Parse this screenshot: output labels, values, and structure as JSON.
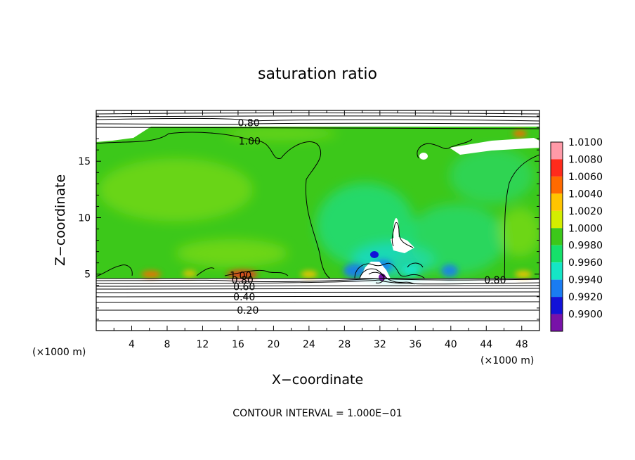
{
  "chart_data": {
    "type": "heatmap",
    "title": "saturation ratio",
    "xlabel": "X−coordinate",
    "ylabel": "Z−coordinate",
    "x_unit_left": "(×1000 m)",
    "x_unit_right": "(×1000 m)",
    "footer": "CONTOUR INTERVAL = 1.000E−01",
    "xlim": [
      0,
      50
    ],
    "ylim": [
      0,
      19.5
    ],
    "x_ticks": [
      "4",
      "8",
      "12",
      "16",
      "20",
      "24",
      "28",
      "32",
      "36",
      "40",
      "44",
      "48"
    ],
    "y_ticks": [
      "5",
      "10",
      "15"
    ],
    "colorbar_labels": [
      "1.0100",
      "1.0080",
      "1.0060",
      "1.0040",
      "1.0020",
      "1.0000",
      "0.9980",
      "0.9960",
      "0.9940",
      "0.9920",
      "0.9900"
    ],
    "colorbar_colors": [
      "#ff9aa8",
      "#ff2b1c",
      "#ff6a00",
      "#ffc400",
      "#d4ee00",
      "#3cc81a",
      "#15e06a",
      "#15e6c6",
      "#1a7cf2",
      "#1212d8",
      "#7812a8"
    ],
    "contour_labels": [
      {
        "text": "0.80",
        "x": 17.2,
        "z": 18.4
      },
      {
        "text": "1.00",
        "x": 17.3,
        "z": 16.8
      },
      {
        "text": "1.00",
        "x": 16.3,
        "z": 4.9
      },
      {
        "text": "0.80",
        "x": 16.5,
        "z": 4.5
      },
      {
        "text": "0.60",
        "x": 16.7,
        "z": 3.9
      },
      {
        "text": "0.40",
        "x": 16.7,
        "z": 3.0
      },
      {
        "text": "0.20",
        "x": 17.1,
        "z": 1.8
      },
      {
        "text": "0.80",
        "x": 45.0,
        "z": 4.5
      }
    ]
  }
}
